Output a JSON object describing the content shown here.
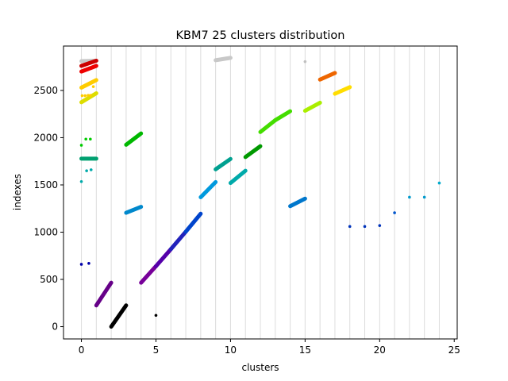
{
  "chart_data": {
    "type": "scatter",
    "title": "KBM7 25 clusters distribution",
    "xlabel": "clusters",
    "ylabel": "indexes",
    "xlim": [
      -1.2,
      25.2
    ],
    "ylim": [
      -130,
      2970
    ],
    "xticks": [
      0,
      5,
      10,
      15,
      20,
      25
    ],
    "yticks": [
      0,
      500,
      1000,
      1500,
      2000,
      2500
    ],
    "grid": "vertical lines at every integer cluster",
    "legend": "none",
    "segments": [
      {
        "x": [
          0,
          1
        ],
        "y": [
          2810,
          2815
        ],
        "color": "#c8c8c8"
      },
      {
        "x": [
          0,
          1
        ],
        "y": [
          2760,
          2815
        ],
        "color": "#cc0000"
      },
      {
        "x": [
          0,
          1
        ],
        "y": [
          2700,
          2760
        ],
        "color": "#ee0000"
      },
      {
        "x": [
          0,
          1
        ],
        "y": [
          2530,
          2610
        ],
        "color": "#ffcc00"
      },
      {
        "x": [
          0,
          1
        ],
        "y": [
          2375,
          2470
        ],
        "color": "#dddd00"
      },
      {
        "x": [
          0,
          1
        ],
        "y": [
          1778,
          1778
        ],
        "color": "#00a070"
      },
      {
        "x": [
          1,
          2
        ],
        "y": [
          225,
          465
        ],
        "color": "#660088"
      },
      {
        "x": [
          2,
          3
        ],
        "y": [
          0,
          225
        ],
        "color": "#000000"
      },
      {
        "x": [
          3,
          4
        ],
        "y": [
          1925,
          2045
        ],
        "color": "#00b800"
      },
      {
        "x": [
          3,
          4
        ],
        "y": [
          1205,
          1268
        ],
        "color": "#0088cc"
      },
      {
        "x": [
          4,
          5
        ],
        "y": [
          465,
          640
        ],
        "color": "#770099"
      },
      {
        "x": [
          5,
          6
        ],
        "y": [
          640,
          820
        ],
        "color": "#5500aa"
      },
      {
        "x": [
          6,
          7
        ],
        "y": [
          820,
          1005
        ],
        "color": "#2222bb"
      },
      {
        "x": [
          7,
          8
        ],
        "y": [
          1005,
          1195
        ],
        "color": "#0044cc"
      },
      {
        "x": [
          8,
          9
        ],
        "y": [
          1370,
          1530
        ],
        "color": "#0099dd"
      },
      {
        "x": [
          9,
          10
        ],
        "y": [
          1665,
          1775
        ],
        "color": "#00a090"
      },
      {
        "x": [
          9,
          10
        ],
        "y": [
          2820,
          2845
        ],
        "color": "#c8c8c8"
      },
      {
        "x": [
          10,
          11
        ],
        "y": [
          1520,
          1650
        ],
        "color": "#00aaaa"
      },
      {
        "x": [
          11,
          12
        ],
        "y": [
          1795,
          1910
        ],
        "color": "#009900"
      },
      {
        "x": [
          12,
          13
        ],
        "y": [
          2060,
          2185
        ],
        "color": "#44dd00"
      },
      {
        "x": [
          13,
          14
        ],
        "y": [
          2185,
          2280
        ],
        "color": "#44dd00"
      },
      {
        "x": [
          14,
          15
        ],
        "y": [
          1275,
          1355
        ],
        "color": "#0077cc"
      },
      {
        "x": [
          15,
          16
        ],
        "y": [
          2285,
          2370
        ],
        "color": "#aaee00"
      },
      {
        "x": [
          16,
          17
        ],
        "y": [
          2615,
          2685
        ],
        "color": "#ee6600"
      },
      {
        "x": [
          17,
          18
        ],
        "y": [
          2465,
          2535
        ],
        "color": "#ffdd00"
      }
    ],
    "points": [
      {
        "x": 0,
        "y": 660,
        "color": "#0000aa"
      },
      {
        "x": 0.5,
        "y": 670,
        "color": "#0000aa"
      },
      {
        "x": 0,
        "y": 1920,
        "color": "#00cc00"
      },
      {
        "x": 0.3,
        "y": 1985,
        "color": "#00cc00"
      },
      {
        "x": 0.6,
        "y": 1985,
        "color": "#00cc00"
      },
      {
        "x": 0,
        "y": 1535,
        "color": "#00aaaa"
      },
      {
        "x": 0.35,
        "y": 1650,
        "color": "#00aaaa"
      },
      {
        "x": 0.65,
        "y": 1660,
        "color": "#00aaaa"
      },
      {
        "x": 0.8,
        "y": 2540,
        "color": "#ffcc00"
      },
      {
        "x": 0.05,
        "y": 2445,
        "color": "#ffcc00"
      },
      {
        "x": 0.25,
        "y": 2445,
        "color": "#ffcc00"
      },
      {
        "x": 0.45,
        "y": 2448,
        "color": "#ffcc00"
      },
      {
        "x": 0.6,
        "y": 2448,
        "color": "#ffcc00"
      },
      {
        "x": 5,
        "y": 120,
        "color": "#000000"
      },
      {
        "x": 15,
        "y": 2805,
        "color": "#c0c0c0"
      },
      {
        "x": 18,
        "y": 1060,
        "color": "#0033bb"
      },
      {
        "x": 19,
        "y": 1060,
        "color": "#0033bb"
      },
      {
        "x": 20,
        "y": 1070,
        "color": "#0033bb"
      },
      {
        "x": 21,
        "y": 1205,
        "color": "#0055cc"
      },
      {
        "x": 22,
        "y": 1370,
        "color": "#0099cc"
      },
      {
        "x": 23,
        "y": 1370,
        "color": "#0099cc"
      },
      {
        "x": 24,
        "y": 1520,
        "color": "#00aacc"
      }
    ]
  }
}
